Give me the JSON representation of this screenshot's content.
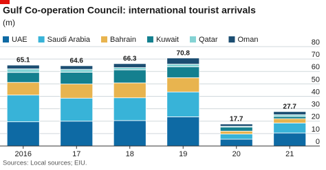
{
  "chart_data": {
    "type": "stacked-bar",
    "title": "Gulf Co-operation Council: international tourist arrivals",
    "subtitle": "(m)",
    "source": "Sources: Local sources; EIU.",
    "categories": [
      "2016",
      "17",
      "18",
      "19",
      "20",
      "21"
    ],
    "series": [
      {
        "name": "UAE",
        "color": "#0e6aa4",
        "values": [
          19.5,
          20,
          20.5,
          23.5,
          5.5,
          10.5
        ]
      },
      {
        "name": "Saudi Arabia",
        "color": "#38b3d8",
        "values": [
          21.5,
          18.5,
          18.3,
          20,
          4.1,
          8
        ]
      },
      {
        "name": "Bahrain",
        "color": "#e8b44f",
        "values": [
          10.2,
          11.4,
          12,
          11.5,
          2.4,
          3.5
        ]
      },
      {
        "name": "Kuwait",
        "color": "#14808f",
        "values": [
          8,
          9.5,
          10.5,
          8.8,
          3.3,
          1.8
        ]
      },
      {
        "name": "Qatar",
        "color": "#84d3d4",
        "values": [
          2.9,
          2.3,
          1.8,
          2.1,
          0.6,
          1.4
        ]
      },
      {
        "name": "Oman",
        "color": "#1c4e72",
        "values": [
          3,
          2.9,
          3.2,
          4.9,
          1.8,
          2.5
        ]
      }
    ],
    "totals": [
      65.1,
      64.6,
      66.3,
      70.8,
      17.7,
      27.7
    ],
    "ylim": [
      0,
      80
    ],
    "yticks": [
      0,
      10,
      20,
      30,
      40,
      50,
      60,
      70,
      80
    ],
    "grid": true
  }
}
